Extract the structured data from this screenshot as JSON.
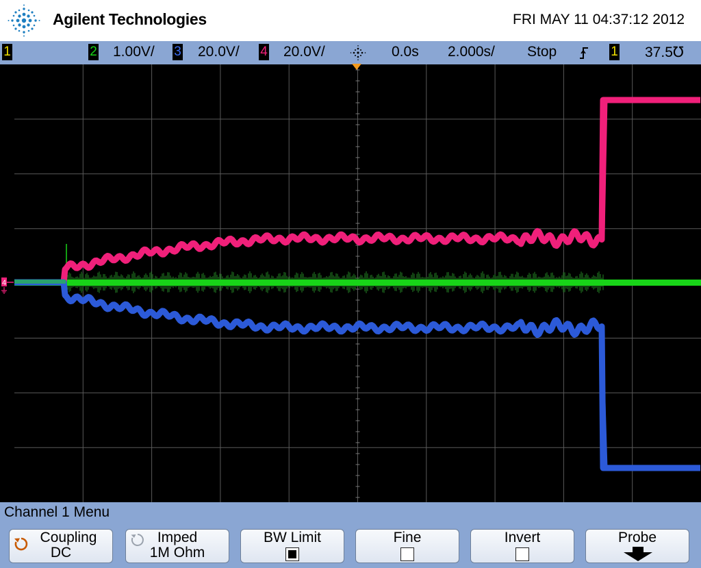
{
  "header": {
    "brand": "Agilent Technologies",
    "datetime": "FRI MAY 11 04:37:12 2012"
  },
  "status_bar": {
    "ch1": "1",
    "ch2": "2",
    "ch2_scale": "1.00V/",
    "ch3": "3",
    "ch3_scale": "20.0V/",
    "ch4": "4",
    "ch4_scale": "20.0V/",
    "time_delay": "0.0s",
    "time_scale": "2.000s/",
    "run_state": "Stop",
    "trigger_source": "1",
    "trigger_level": "37.5℧",
    "colors": {
      "ch1": "#f0e000",
      "ch2": "#18d418",
      "ch3": "#2c5ad8",
      "ch4": "#f0207a"
    }
  },
  "display": {
    "ground_marker": "4",
    "traces": [
      "ch4-pink",
      "ch2-green",
      "ch3-blue"
    ]
  },
  "menu": {
    "title": "Channel 1  Menu",
    "softkeys": [
      {
        "label": "Coupling",
        "value": "DC"
      },
      {
        "label": "Imped",
        "value": "1M Ohm"
      },
      {
        "label": "BW Limit",
        "value": ""
      },
      {
        "label": "Fine",
        "value": ""
      },
      {
        "label": "Invert",
        "value": ""
      },
      {
        "label": "Probe",
        "value": ""
      }
    ],
    "bw_limit_checked": true,
    "fine_checked": false,
    "invert_checked": false
  }
}
